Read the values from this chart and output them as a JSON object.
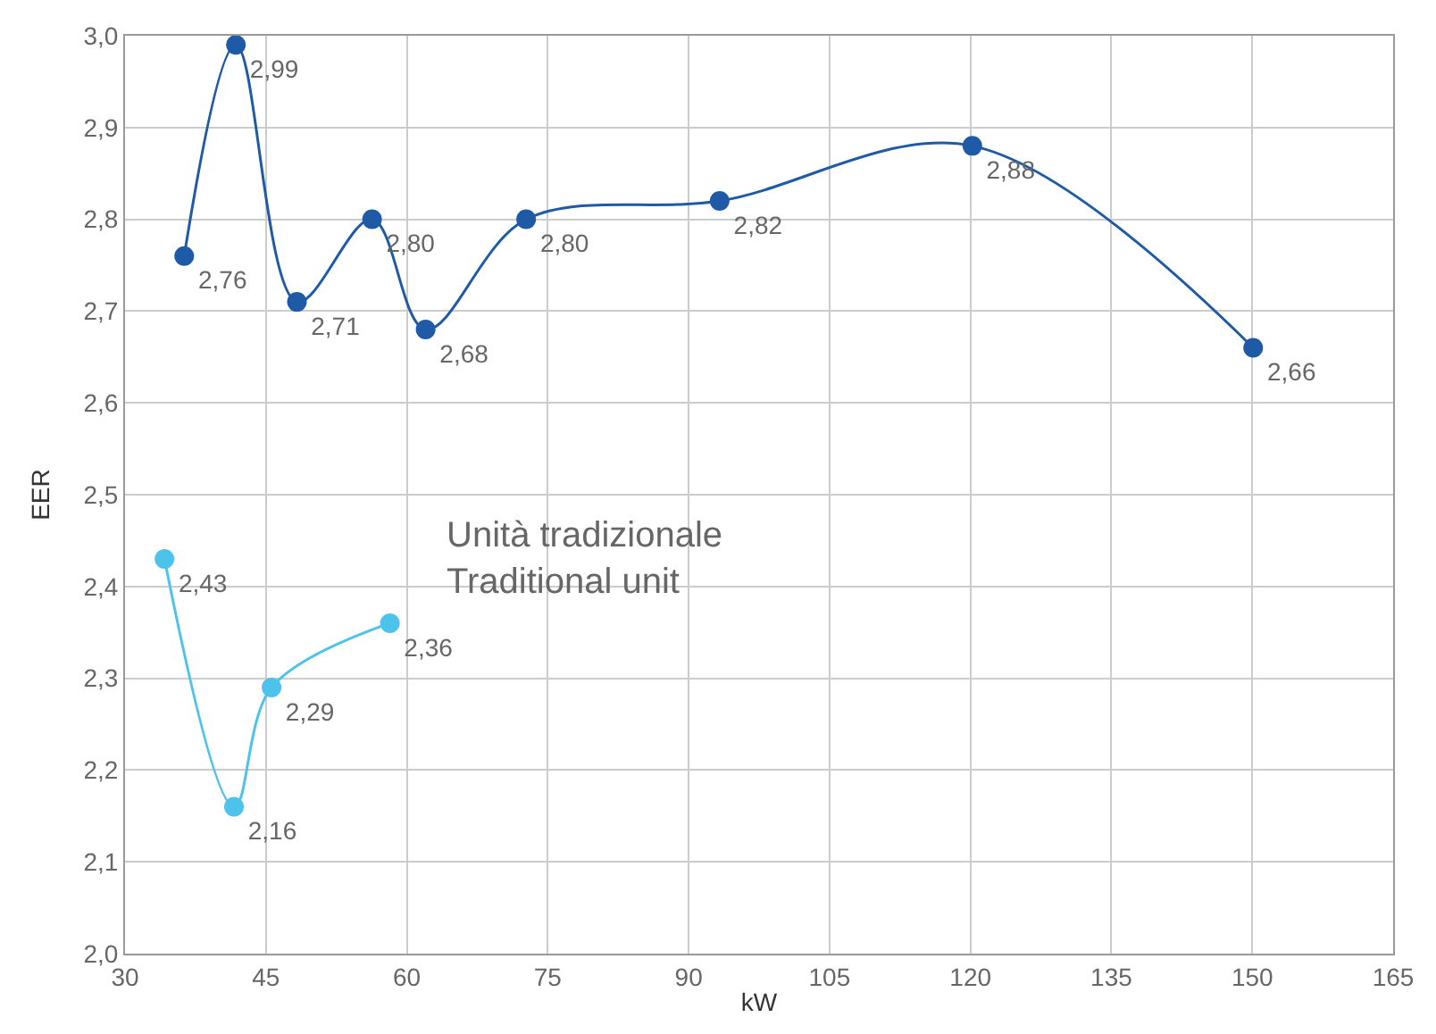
{
  "chart_data": {
    "type": "line",
    "xlabel": "kW",
    "ylabel": "EER",
    "xlim": [
      30,
      165
    ],
    "xticks": [
      30,
      45,
      60,
      75,
      90,
      105,
      120,
      135,
      150,
      165
    ],
    "ylim": [
      2.0,
      3.0
    ],
    "yticks": [
      {
        "value": 2.0,
        "label": "2,0"
      },
      {
        "value": 2.1,
        "label": "2,1"
      },
      {
        "value": 2.2,
        "label": "2,2"
      },
      {
        "value": 2.3,
        "label": "2,3"
      },
      {
        "value": 2.4,
        "label": "2,4"
      },
      {
        "value": 2.5,
        "label": "2,5"
      },
      {
        "value": 2.6,
        "label": "2,6"
      },
      {
        "value": 2.7,
        "label": "2,7"
      },
      {
        "value": 2.8,
        "label": "2,8"
      },
      {
        "value": 2.9,
        "label": "2,9"
      },
      {
        "value": 3.0,
        "label": "3,0"
      }
    ],
    "grid": true,
    "legend": false,
    "marker": "circle",
    "line_style": "solid",
    "series": [
      {
        "color": "#1f5aa6",
        "x": [
          36.3,
          41.8,
          48.3,
          56.3,
          62.0,
          72.7,
          93.3,
          120.2,
          150.1
        ],
        "values": [
          2.76,
          2.99,
          2.71,
          2.8,
          2.68,
          2.8,
          2.82,
          2.88,
          2.66
        ],
        "value_labels": [
          "2,76",
          "2,99",
          "2,71",
          "2,80",
          "2,68",
          "2,80",
          "2,82",
          "2,88",
          "2,66"
        ]
      },
      {
        "name": "Unità tradizionale\nTraditional unit",
        "color": "#4dc3ec",
        "x": [
          34.2,
          41.6,
          45.6,
          58.2
        ],
        "values": [
          2.43,
          2.16,
          2.29,
          2.36
        ],
        "value_labels": [
          "2,43",
          "2,16",
          "2,29",
          "2,36"
        ]
      }
    ]
  }
}
